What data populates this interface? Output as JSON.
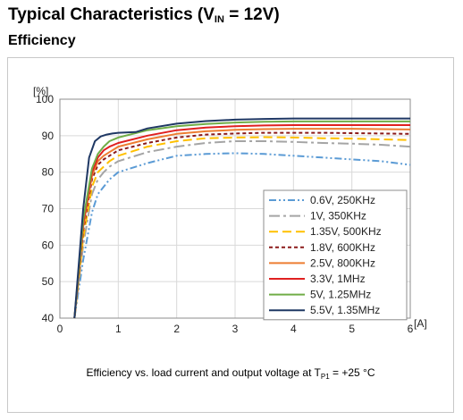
{
  "header": {
    "title_main": "Typical Characteristics (V",
    "title_sub": "IN",
    "title_rest": " = 12V)",
    "section": "Efficiency"
  },
  "chart_data": {
    "type": "line",
    "xlabel": "[A]",
    "ylabel": "[%]",
    "xlim": [
      0,
      6
    ],
    "ylim": [
      40,
      100
    ],
    "x_ticks": [
      0,
      1,
      2,
      3,
      4,
      5,
      6
    ],
    "y_ticks": [
      40,
      50,
      60,
      70,
      80,
      90,
      100
    ],
    "grid": true,
    "legend_position": "bottom-right",
    "caption_pre": "Efficiency vs. load current and output voltage at T",
    "caption_sub": "P1",
    "caption_post": " = +25 °C",
    "series": [
      {
        "name": "0.6V, 250KHz",
        "color": "#5b9bd5",
        "dash": "8,3,2,3,2,3",
        "x": [
          0.25,
          0.4,
          0.55,
          0.65,
          0.75,
          0.85,
          1.0,
          1.5,
          2.0,
          2.5,
          3.0,
          3.5,
          4.0,
          4.5,
          5.0,
          5.5,
          6.0
        ],
        "y": [
          40,
          56,
          69,
          74,
          76,
          78,
          80,
          82.5,
          84.5,
          85,
          85.2,
          85,
          84.5,
          84,
          83.5,
          83,
          82
        ]
      },
      {
        "name": "1V, 350KHz",
        "color": "#a5a5a5",
        "dash": "12,4,3,4",
        "x": [
          0.25,
          0.4,
          0.55,
          0.65,
          0.75,
          0.85,
          1.0,
          1.5,
          2.0,
          2.5,
          3.0,
          3.5,
          4.0,
          4.5,
          5.0,
          5.5,
          6.0
        ],
        "y": [
          40,
          60,
          74,
          78,
          80,
          81.5,
          83,
          85.5,
          87,
          88,
          88.5,
          88.5,
          88.3,
          88,
          87.8,
          87.5,
          87
        ]
      },
      {
        "name": "1.35V, 500KHz",
        "color": "#ffc000",
        "dash": "10,5",
        "x": [
          0.25,
          0.4,
          0.55,
          0.65,
          0.75,
          0.85,
          1.0,
          1.5,
          2.0,
          2.5,
          3.0,
          3.5,
          4.0,
          4.5,
          5.0,
          5.5,
          6.0
        ],
        "y": [
          40,
          62,
          76,
          80,
          81.5,
          83,
          84.5,
          87,
          88.5,
          89.3,
          89.5,
          89.6,
          89.5,
          89.3,
          89.2,
          89,
          88.8
        ]
      },
      {
        "name": "1.8V, 600KHz",
        "color": "#8b1a1a",
        "dash": "4,3",
        "x": [
          0.25,
          0.4,
          0.55,
          0.65,
          0.75,
          0.85,
          1.0,
          1.5,
          2.0,
          2.5,
          3.0,
          3.5,
          4.0,
          4.5,
          5.0,
          5.5,
          6.0
        ],
        "y": [
          40,
          64,
          78,
          82,
          83.5,
          84.5,
          86,
          88,
          89.5,
          90.3,
          90.6,
          90.8,
          90.8,
          90.8,
          90.7,
          90.6,
          90.5
        ]
      },
      {
        "name": "2.5V, 800KHz",
        "color": "#ed7d31",
        "dash": "",
        "x": [
          0.25,
          0.4,
          0.55,
          0.65,
          0.75,
          0.85,
          1.0,
          1.5,
          2.0,
          2.5,
          3.0,
          3.5,
          4.0,
          4.5,
          5.0,
          5.5,
          6.0
        ],
        "y": [
          40,
          65,
          79,
          83,
          84.5,
          85.5,
          87,
          89,
          90.5,
          91.2,
          91.6,
          91.8,
          91.9,
          91.9,
          91.9,
          91.8,
          91.7
        ]
      },
      {
        "name": "3.3V, 1MHz",
        "color": "#e02020",
        "dash": "",
        "x": [
          0.25,
          0.4,
          0.55,
          0.65,
          0.75,
          0.85,
          1.0,
          1.5,
          2.0,
          2.5,
          3.0,
          3.5,
          4.0,
          4.5,
          5.0,
          5.5,
          6.0
        ],
        "y": [
          40,
          66,
          80,
          84,
          86,
          87,
          88,
          90,
          91.5,
          92.2,
          92.6,
          92.8,
          92.9,
          92.9,
          92.9,
          92.9,
          92.9
        ]
      },
      {
        "name": "5V, 1.25MHz",
        "color": "#70ad47",
        "dash": "",
        "x": [
          0.25,
          0.4,
          0.55,
          0.65,
          0.75,
          0.85,
          1.0,
          1.5,
          2.0,
          2.5,
          3.0,
          3.5,
          4.0,
          4.5,
          5.0,
          5.5,
          6.0
        ],
        "y": [
          40,
          67,
          81,
          85,
          87,
          88.5,
          89.5,
          91.5,
          92.6,
          93.2,
          93.6,
          93.8,
          93.9,
          93.9,
          93.9,
          93.9,
          93.9
        ]
      },
      {
        "name": "5.5V, 1.35MHz",
        "color": "#1f3864",
        "dash": "",
        "x": [
          0.25,
          0.4,
          0.5,
          0.6,
          0.7,
          0.8,
          0.9,
          1.0,
          1.3,
          1.5,
          2.0,
          2.5,
          3.0,
          3.5,
          4.0,
          4.5,
          5.0,
          5.5,
          6.0
        ],
        "y": [
          40,
          70,
          84,
          88.5,
          89.8,
          90.3,
          90.6,
          90.8,
          91,
          92,
          93.3,
          94,
          94.4,
          94.6,
          94.7,
          94.7,
          94.7,
          94.7,
          94.7
        ]
      }
    ]
  }
}
